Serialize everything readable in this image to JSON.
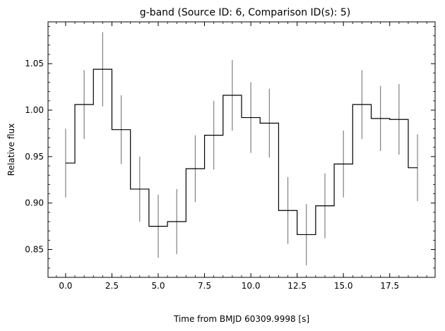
{
  "chart_data": {
    "type": "line",
    "style": "step-mid",
    "title": "g-band (Source ID: 6, Comparison ID(s): 5)",
    "xlabel": "Time from BMJD 60309.9998 [s]",
    "ylabel": "Relative flux",
    "xlim": [
      -0.95,
      19.95
    ],
    "ylim": [
      0.82,
      1.095
    ],
    "xticks": [
      0.0,
      2.5,
      5.0,
      7.5,
      10.0,
      12.5,
      15.0,
      17.5
    ],
    "xtick_labels": [
      "0.0",
      "2.5",
      "5.0",
      "7.5",
      "10.0",
      "12.5",
      "15.0",
      "17.5"
    ],
    "yticks": [
      0.85,
      0.9,
      0.95,
      1.0,
      1.05
    ],
    "ytick_labels": [
      "0.85",
      "0.90",
      "0.95",
      "1.00",
      "1.05"
    ],
    "grid": false,
    "series": [
      {
        "x": [
          0,
          1,
          2,
          3,
          4,
          5,
          6,
          7,
          8,
          9,
          10,
          11,
          12,
          13,
          14,
          15,
          16,
          17,
          18,
          19
        ],
        "values": [
          0.943,
          1.006,
          1.044,
          0.979,
          0.915,
          0.875,
          0.88,
          0.937,
          0.973,
          1.016,
          0.992,
          0.986,
          0.892,
          0.866,
          0.897,
          0.942,
          1.006,
          0.991,
          0.99,
          0.938
        ],
        "errors": [
          0.037,
          0.037,
          0.04,
          0.037,
          0.035,
          0.034,
          0.035,
          0.036,
          0.037,
          0.038,
          0.038,
          0.037,
          0.036,
          0.033,
          0.035,
          0.036,
          0.037,
          0.035,
          0.038,
          0.036
        ],
        "color": "#000000",
        "error_color": "#808080"
      }
    ]
  }
}
